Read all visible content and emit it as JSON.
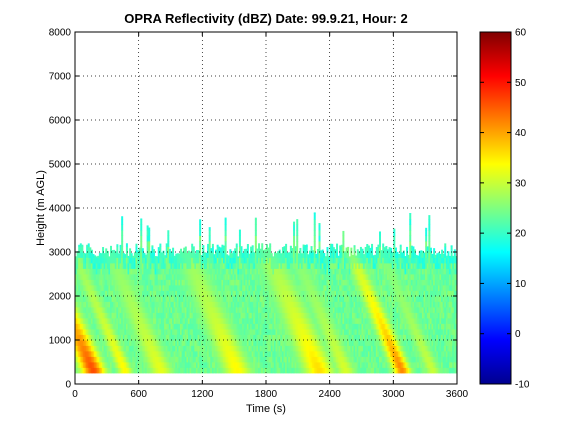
{
  "chart_data": {
    "type": "heatmap",
    "title": "OPRA Reflectivity (dBZ)  Date: 99.9.21, Hour: 2",
    "xlabel": "Time (s)",
    "ylabel": "Height (m AGL)",
    "xlim": [
      0,
      3600
    ],
    "ylim": [
      0,
      8000
    ],
    "xticks": [
      0,
      600,
      1200,
      1800,
      2400,
      3000,
      3600
    ],
    "yticks": [
      0,
      1000,
      2000,
      3000,
      4000,
      5000,
      6000,
      7000,
      8000
    ],
    "grid": true,
    "colorbar": {
      "colormap": "jet",
      "range": [
        -10,
        60
      ],
      "ticks": [
        -10,
        0,
        10,
        20,
        30,
        40,
        50,
        60
      ]
    },
    "data_extent": {
      "y_min": 250,
      "echo_top_typical": 3000,
      "echo_top_max": 3900
    },
    "rain_streaks": [
      {
        "t_base": 220,
        "peak_dbz": 46,
        "width": 110
      },
      {
        "t_base": 520,
        "peak_dbz": 34,
        "width": 70
      },
      {
        "t_base": 860,
        "peak_dbz": 32,
        "width": 110
      },
      {
        "t_base": 1580,
        "peak_dbz": 34,
        "width": 130
      },
      {
        "t_base": 2350,
        "peak_dbz": 36,
        "width": 140
      },
      {
        "t_base": 2600,
        "peak_dbz": 31,
        "width": 90
      },
      {
        "t_base": 3130,
        "peak_dbz": 42,
        "width": 80
      },
      {
        "t_base": 3420,
        "peak_dbz": 30,
        "width": 70
      }
    ],
    "background_dbz": 22
  }
}
